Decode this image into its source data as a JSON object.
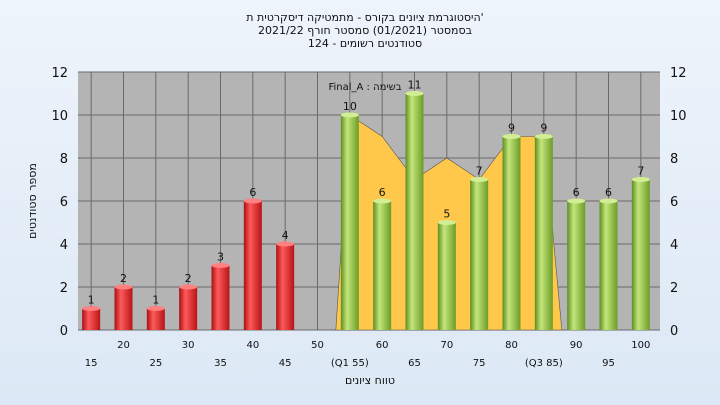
{
  "chart_data": {
    "type": "bar",
    "title_lines": [
      "היסטוגרמת ציונים בקורס - מתמטיקה דיסקרטית ת'",
      "בסמסטר   (01/2021)   סמסטר חורף   2021/22",
      "סטודנטים רשומים - 124"
    ],
    "annotation": "בשימה : Final_A",
    "xlabel": "טווח ציונים",
    "ylabel": "מספר סטודנטים",
    "ylim": [
      0,
      12
    ],
    "yticks": [
      "0",
      "2",
      "4",
      "6",
      "8",
      "10",
      "12"
    ],
    "categories": [
      "15",
      "20",
      "25",
      "30",
      "35",
      "40",
      "45",
      "50",
      "55",
      "60",
      "65",
      "70",
      "75",
      "80",
      "85",
      "90",
      "95",
      "100"
    ],
    "category_labels": [
      "15",
      "20",
      "25",
      "30",
      "35",
      "40",
      "45",
      "50",
      "(Q1 55)",
      "60",
      "65",
      "70",
      "75",
      "80",
      "(Q3 85)",
      "90",
      "95",
      "100"
    ],
    "values": [
      1,
      2,
      1,
      2,
      3,
      6,
      4,
      null,
      10,
      6,
      11,
      5,
      7,
      9,
      9,
      6,
      6,
      7
    ],
    "area_series": [
      null,
      null,
      null,
      null,
      null,
      null,
      null,
      null,
      10,
      9,
      7,
      8,
      7,
      9,
      9,
      null,
      null,
      null
    ],
    "bar_colors": {
      "fail": "#e0262a",
      "pass": "#8fc043"
    },
    "area_color": "#ffc84a",
    "grid": true
  }
}
